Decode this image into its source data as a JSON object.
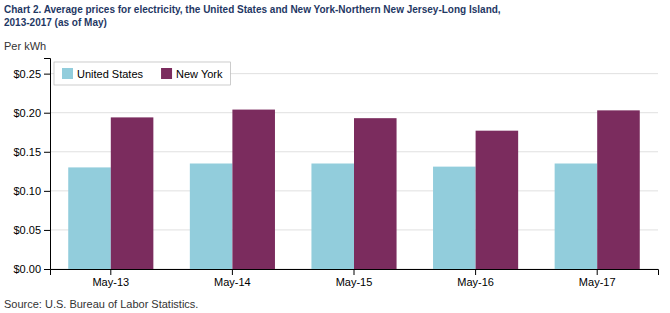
{
  "chart_data": {
    "type": "bar",
    "title": "Chart 2. Average prices for electricity, the United States and New York-Northern New Jersey-Long Island,\n2013-2017 (as of May)",
    "ylabel": "Per kWh",
    "source": "Source: U.S. Bureau of Labor Statistics.",
    "categories": [
      "May-13",
      "May-14",
      "May-15",
      "May-16",
      "May-17"
    ],
    "series": [
      {
        "name": "United States",
        "color": "#92CDDC",
        "values": [
          0.13,
          0.135,
          0.135,
          0.131,
          0.135
        ]
      },
      {
        "name": "New York",
        "color": "#7B2C5E",
        "values": [
          0.194,
          0.204,
          0.193,
          0.177,
          0.203
        ]
      }
    ],
    "ylim": [
      0,
      0.27
    ],
    "yticks": [
      {
        "value": 0.0,
        "label": "$0.00"
      },
      {
        "value": 0.05,
        "label": "$0.05"
      },
      {
        "value": 0.1,
        "label": "$0.10"
      },
      {
        "value": 0.15,
        "label": "$0.15"
      },
      {
        "value": 0.2,
        "label": "$0.20"
      },
      {
        "value": 0.25,
        "label": "$0.25"
      }
    ],
    "grid": true,
    "legend": "top-left"
  }
}
